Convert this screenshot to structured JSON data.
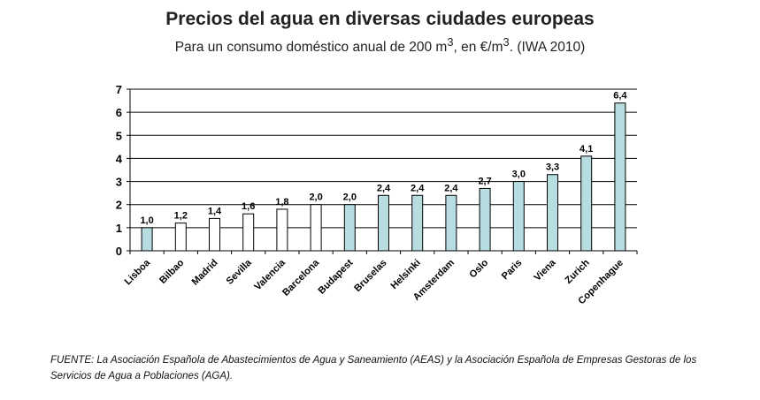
{
  "chart_data": {
    "type": "bar",
    "title": "Precios del agua en diversas ciudades europeas",
    "subtitle_parts": [
      "Para un consumo doméstico anual de 200 m",
      "3",
      ", en €/m",
      "3",
      ". (IWA 2010)"
    ],
    "categories": [
      "Lisboa",
      "Bilbao",
      "Madrid",
      "Sevilla",
      "Valencia",
      "Barcelona",
      "Budapest",
      "Bruselas",
      "Helsinki",
      "Amsterdam",
      "Oslo",
      "Paris",
      "Viena",
      "Zurich",
      "Copenhague"
    ],
    "values": [
      1.0,
      1.2,
      1.4,
      1.6,
      1.8,
      2.0,
      2.0,
      2.4,
      2.4,
      2.4,
      2.7,
      3.0,
      3.3,
      4.1,
      6.4
    ],
    "data_labels": [
      "1,0",
      "1,2",
      "1,4",
      "1,6",
      "1,8",
      "2,0",
      "2,0",
      "2,4",
      "2,4",
      "2,4",
      "2,7",
      "3,0",
      "3,3",
      "4,1",
      "6,4"
    ],
    "bar_colors": [
      "#b7dde0",
      "#ffffff",
      "#ffffff",
      "#ffffff",
      "#ffffff",
      "#ffffff",
      "#b7dde0",
      "#b7dde0",
      "#b7dde0",
      "#b7dde0",
      "#b7dde0",
      "#b7dde0",
      "#b7dde0",
      "#b7dde0",
      "#b7dde0"
    ],
    "ylim": [
      0,
      7
    ],
    "yticks": [
      "0",
      "1",
      "2",
      "3",
      "4",
      "5",
      "6",
      "7"
    ],
    "grid": true,
    "xlabel": "",
    "ylabel": ""
  },
  "source": "FUENTE: La Asociación Española de Abastecimientos de Agua y Saneamiento (AEAS) y la Asociación Española de Empresas Gestoras de los Servicios de Agua a Poblaciones (AGA)."
}
